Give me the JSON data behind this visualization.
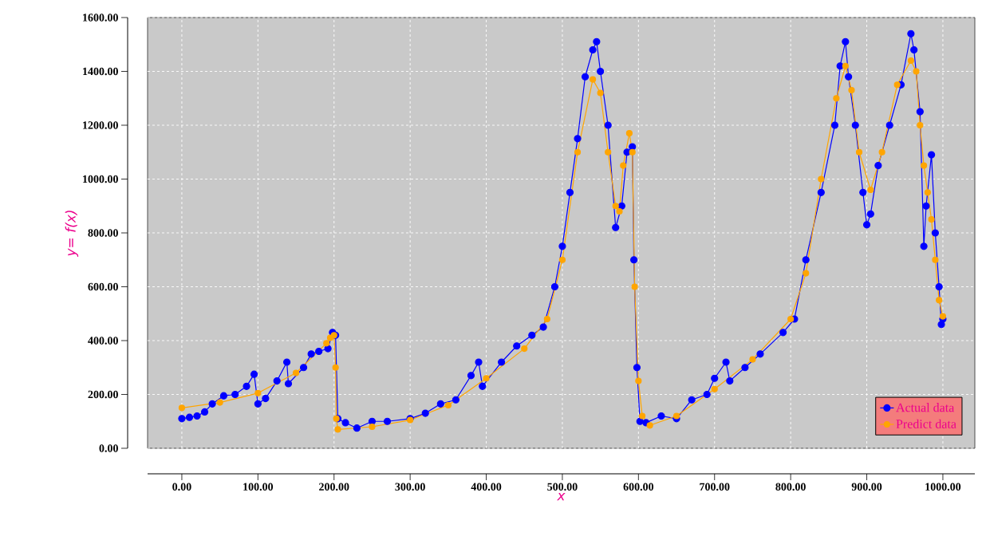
{
  "chart_data": {
    "type": "line",
    "xlabel": "x",
    "ylabel": "y= f(x)",
    "xlim": [
      -45,
      1042
    ],
    "ylim": [
      0,
      1600
    ],
    "xticks": [
      {
        "value": 0,
        "label": "0.00"
      },
      {
        "value": 100,
        "label": "100.00"
      },
      {
        "value": 200,
        "label": "200.00"
      },
      {
        "value": 300,
        "label": "300.00"
      },
      {
        "value": 400,
        "label": "400.00"
      },
      {
        "value": 500,
        "label": "500.00"
      },
      {
        "value": 600,
        "label": "600.00"
      },
      {
        "value": 700,
        "label": "700.00"
      },
      {
        "value": 800,
        "label": "800.00"
      },
      {
        "value": 900,
        "label": "900.00"
      },
      {
        "value": 1000,
        "label": "1000.00"
      }
    ],
    "yticks": [
      {
        "value": 0,
        "label": "0.00"
      },
      {
        "value": 200,
        "label": "200.00"
      },
      {
        "value": 400,
        "label": "400.00"
      },
      {
        "value": 600,
        "label": "600.00"
      },
      {
        "value": 800,
        "label": "800.00"
      },
      {
        "value": 1000,
        "label": "1000.00"
      },
      {
        "value": 1200,
        "label": "1200.00"
      },
      {
        "value": 1400,
        "label": "1400.00"
      },
      {
        "value": 1600,
        "label": "1600.00"
      }
    ],
    "grid": true,
    "legend": "bottom right",
    "marker": "circle",
    "line_style": "solid",
    "series": [
      {
        "name": "Actual data",
        "color": "#0000ff",
        "x": [
          0,
          10,
          20,
          30,
          40,
          55,
          70,
          85,
          95,
          100,
          110,
          125,
          138,
          140,
          160,
          170,
          180,
          192,
          198,
          202,
          205,
          215,
          230,
          250,
          270,
          300,
          320,
          340,
          360,
          380,
          390,
          395,
          420,
          440,
          460,
          475,
          490,
          500,
          510,
          520,
          530,
          540,
          545,
          550,
          560,
          570,
          578,
          585,
          592,
          594,
          598,
          602,
          610,
          630,
          650,
          670,
          690,
          700,
          715,
          720,
          740,
          760,
          790,
          805,
          820,
          840,
          858,
          865,
          872,
          876,
          885,
          895,
          900,
          905,
          915,
          930,
          945,
          958,
          962,
          970,
          975,
          978,
          985,
          990,
          995,
          998,
          1000
        ],
        "values": [
          110,
          115,
          120,
          135,
          165,
          195,
          200,
          230,
          275,
          165,
          185,
          250,
          320,
          240,
          300,
          350,
          360,
          370,
          430,
          420,
          110,
          95,
          75,
          100,
          100,
          110,
          130,
          165,
          180,
          270,
          320,
          230,
          320,
          380,
          420,
          450,
          600,
          750,
          950,
          1150,
          1380,
          1480,
          1510,
          1400,
          1200,
          820,
          900,
          1100,
          1120,
          700,
          300,
          100,
          95,
          120,
          110,
          180,
          200,
          260,
          320,
          250,
          300,
          350,
          430,
          480,
          700,
          950,
          1200,
          1420,
          1510,
          1380,
          1200,
          950,
          830,
          870,
          1050,
          1200,
          1350,
          1540,
          1480,
          1250,
          750,
          900,
          1090,
          800,
          600,
          460,
          480
        ]
      },
      {
        "name": "Predict data",
        "color": "#ffa500",
        "x": [
          0,
          50,
          100,
          150,
          190,
          195,
          200,
          202,
          203,
          205,
          250,
          300,
          350,
          400,
          450,
          480,
          500,
          520,
          540,
          550,
          560,
          570,
          575,
          580,
          588,
          592,
          595,
          600,
          605,
          615,
          650,
          700,
          750,
          800,
          820,
          840,
          860,
          872,
          880,
          890,
          905,
          920,
          940,
          958,
          965,
          970,
          975,
          980,
          985,
          990,
          995,
          1000
        ],
        "values": [
          150,
          170,
          205,
          280,
          390,
          410,
          420,
          300,
          110,
          70,
          80,
          105,
          160,
          260,
          370,
          480,
          700,
          1100,
          1370,
          1320,
          1100,
          900,
          880,
          1050,
          1170,
          1100,
          600,
          250,
          120,
          85,
          120,
          220,
          330,
          480,
          650,
          1000,
          1300,
          1420,
          1330,
          1100,
          960,
          1100,
          1350,
          1440,
          1400,
          1200,
          1050,
          950,
          850,
          700,
          550,
          490
        ]
      }
    ]
  }
}
